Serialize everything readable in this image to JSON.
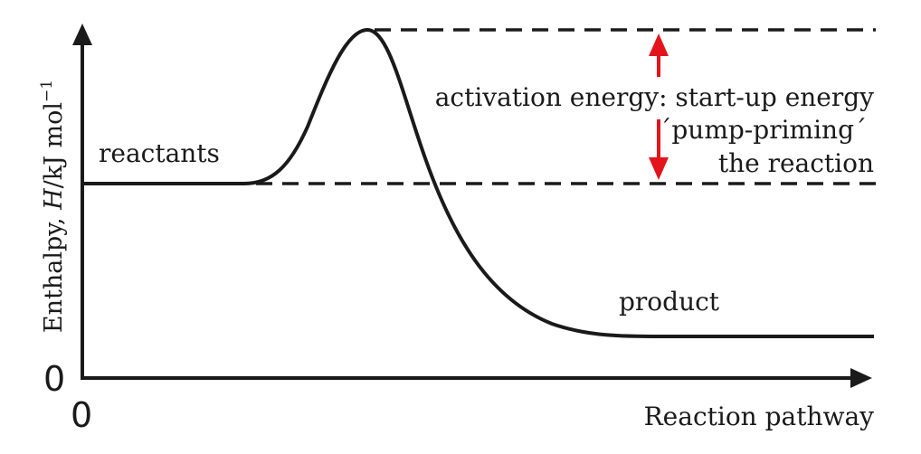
{
  "diagram": {
    "y_axis_label": {
      "prefix": "Enthalpy, ",
      "symbol": "H",
      "unit": "/kJ mol",
      "exponent": "−1"
    },
    "x_axis_label": "Reaction pathway",
    "origin_y": "0",
    "origin_x": "0",
    "reactants_label": "reactants",
    "product_label": "product",
    "activation_label": {
      "line1": "activation energy: start-up energy",
      "line2": "´pump-priming´",
      "line3": "the reaction"
    },
    "colors": {
      "curve": "#1a1a1a",
      "arrow": "#e3141b"
    }
  }
}
